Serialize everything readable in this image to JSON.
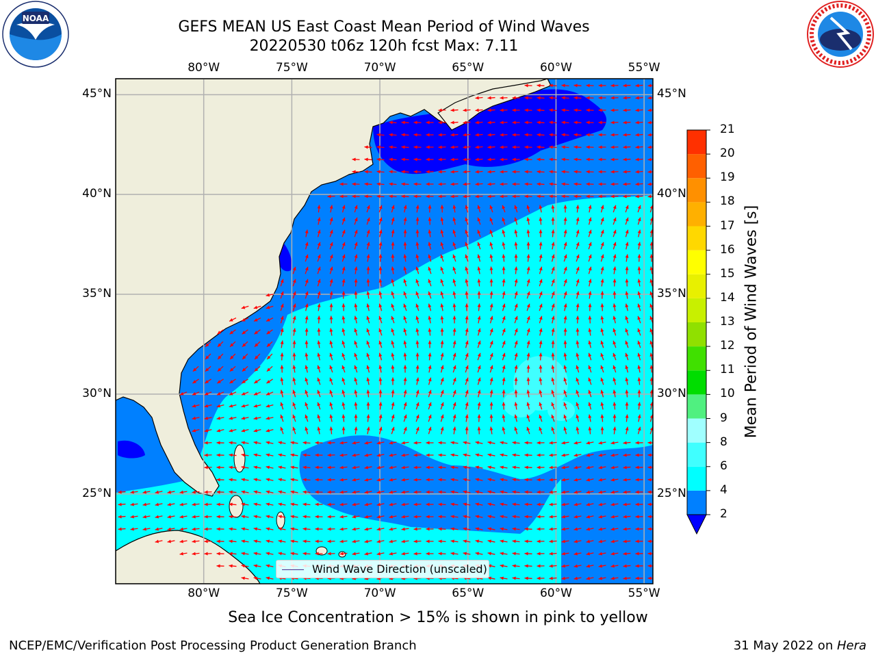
{
  "header": {
    "title_line1": "GEFS MEAN US East Coast Mean Period of Wind Waves",
    "title_line2": "20220530 t06z 120h fcst   Max: 7.11"
  },
  "logos": {
    "left": {
      "name": "NOAA",
      "text": "NOAA",
      "ring_text": "NATIONAL OCEANIC AND ATMOSPHERIC ADMINISTRATION · U.S. DEPARTMENT OF COMMERCE"
    },
    "right": {
      "name": "National Weather Service",
      "ring_text": "NATIONAL WEATHER SERVICE"
    }
  },
  "map": {
    "lon_labels": [
      "80°W",
      "75°W",
      "70°W",
      "65°W",
      "60°W",
      "55°W"
    ],
    "lat_labels": [
      "45°N",
      "40°N",
      "35°N",
      "30°N",
      "25°N"
    ],
    "lon_values": [
      -80,
      -75,
      -70,
      -65,
      -60,
      -55
    ],
    "lat_values": [
      45,
      40,
      35,
      30,
      25
    ],
    "extent": {
      "lon_min": -85,
      "lon_max": -54.5,
      "lat_min": 20.5,
      "lat_max": 45.8
    },
    "land_color": "#efeedc",
    "arrow_color": "#ff0000",
    "grid_color": "#b0b0b0"
  },
  "legend": {
    "label": "Wind Wave Direction (unscaled)"
  },
  "colorbar": {
    "title": "Mean Period of Wind Waves [s]",
    "ticks": [
      "2",
      "4",
      "6",
      "8",
      "9",
      "10",
      "11",
      "12",
      "13",
      "14",
      "15",
      "16",
      "17",
      "18",
      "19",
      "20",
      "21"
    ],
    "colors": [
      "#0080ff",
      "#00ffff",
      "#40ffff",
      "#a0ffff",
      "#50f080",
      "#00dd00",
      "#40e000",
      "#90e000",
      "#c8f000",
      "#e8f000",
      "#ffff00",
      "#ffd800",
      "#ffb000",
      "#ff9000",
      "#ff6000",
      "#ff3000"
    ],
    "under_color": "#0000ff"
  },
  "bottom_note": "Sea Ice Concentration > 15% is shown in pink to yellow",
  "footer": {
    "left": "NCEP/EMC/Verification Post Processing Product Generation Branch",
    "right_date": "31 May 2022 on ",
    "right_host": "Hera"
  }
}
